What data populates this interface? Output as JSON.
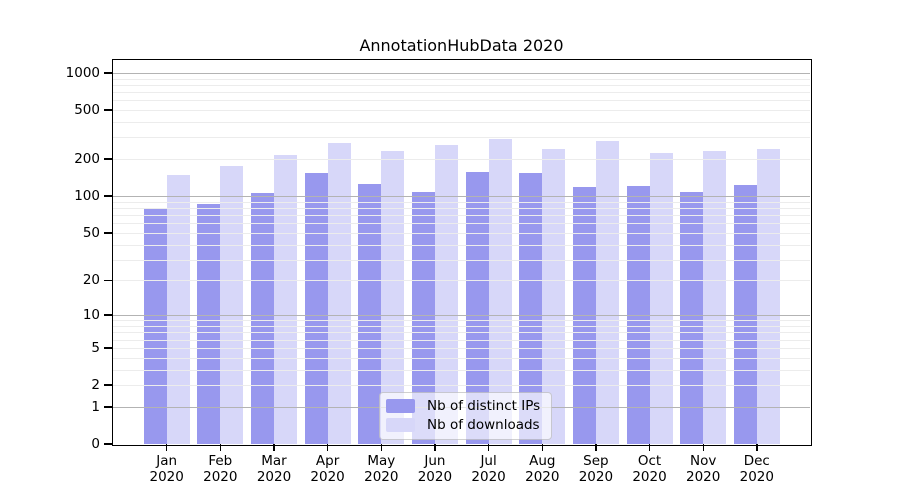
{
  "title": "AnnotationHubData 2020",
  "chart_data": {
    "type": "bar",
    "title": "AnnotationHubData 2020",
    "x_year": "2020",
    "categories": [
      "Jan",
      "Feb",
      "Mar",
      "Apr",
      "May",
      "Jun",
      "Jul",
      "Aug",
      "Sep",
      "Oct",
      "Nov",
      "Dec"
    ],
    "series": [
      {
        "name": "Nb of distinct IPs",
        "color": "#9898ee",
        "values": [
          79,
          87,
          106,
          155,
          125,
          108,
          157,
          155,
          119,
          121,
          109,
          123
        ]
      },
      {
        "name": "Nb of downloads",
        "color": "#d7d7f9",
        "values": [
          150,
          175,
          218,
          270,
          233,
          261,
          293,
          241,
          282,
          226,
          234,
          243
        ]
      }
    ],
    "y_ticks": [
      0,
      1,
      2,
      5,
      10,
      20,
      50,
      100,
      200,
      500,
      1000
    ],
    "y_scale": "log10(1+x)",
    "ylim": [
      0,
      1000
    ],
    "xlabel": "",
    "ylabel": "",
    "grid": "horizontal, minor + emphasized lines at 1/10/100/1000, drawn over bars",
    "legend_position": "inside bottom-center"
  },
  "colors": {
    "distinct_ips_bar": "#9898ee",
    "downloads_bar": "#d7d7f9",
    "grid_minor": "#ececec",
    "grid_major": "#b3b3b3",
    "axis": "#000000",
    "legend_background": "rgba(255,255,255,0.66)"
  }
}
